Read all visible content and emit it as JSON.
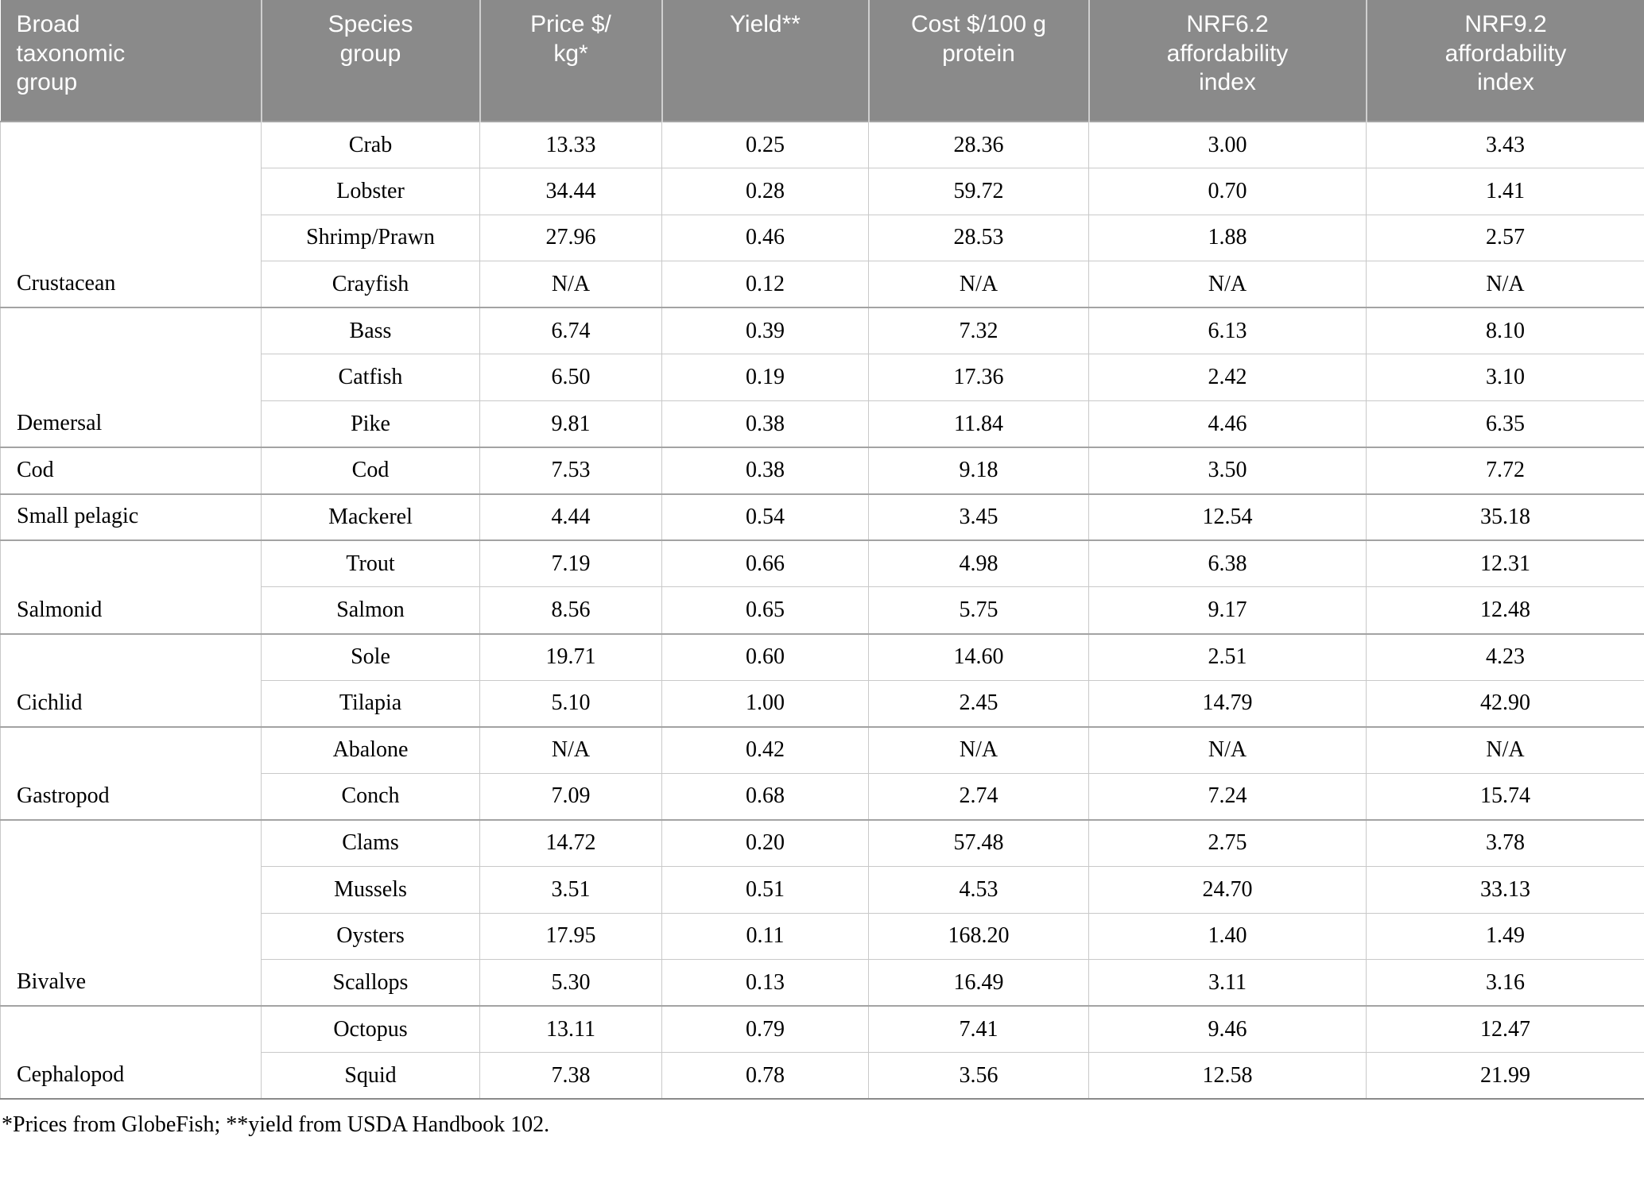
{
  "table": {
    "columns": [
      "Broad\ntaxonomic\ngroup",
      "Species\ngroup",
      "Price $/\nkg*",
      "Yield**",
      "Cost $/100 g\nprotein",
      "NRF6.2\naffordability\nindex",
      "NRF9.2\naffordability\nindex"
    ],
    "groups": [
      {
        "name": "Crustacean",
        "rows": [
          {
            "species": "Crab",
            "price": "13.33",
            "yield": "0.25",
            "cost": "28.36",
            "nrf62": "3.00",
            "nrf92": "3.43"
          },
          {
            "species": "Lobster",
            "price": "34.44",
            "yield": "0.28",
            "cost": "59.72",
            "nrf62": "0.70",
            "nrf92": "1.41"
          },
          {
            "species": "Shrimp/Prawn",
            "price": "27.96",
            "yield": "0.46",
            "cost": "28.53",
            "nrf62": "1.88",
            "nrf92": "2.57"
          },
          {
            "species": "Crayfish",
            "price": "N/A",
            "yield": "0.12",
            "cost": "N/A",
            "nrf62": "N/A",
            "nrf92": "N/A"
          }
        ]
      },
      {
        "name": "Demersal",
        "rows": [
          {
            "species": "Bass",
            "price": "6.74",
            "yield": "0.39",
            "cost": "7.32",
            "nrf62": "6.13",
            "nrf92": "8.10"
          },
          {
            "species": "Catfish",
            "price": "6.50",
            "yield": "0.19",
            "cost": "17.36",
            "nrf62": "2.42",
            "nrf92": "3.10"
          },
          {
            "species": "Pike",
            "price": "9.81",
            "yield": "0.38",
            "cost": "11.84",
            "nrf62": "4.46",
            "nrf92": "6.35"
          }
        ]
      },
      {
        "name": "Cod",
        "rows": [
          {
            "species": "Cod",
            "price": "7.53",
            "yield": "0.38",
            "cost": "9.18",
            "nrf62": "3.50",
            "nrf92": "7.72"
          }
        ]
      },
      {
        "name": "Small pelagic",
        "rows": [
          {
            "species": "Mackerel",
            "price": "4.44",
            "yield": "0.54",
            "cost": "3.45",
            "nrf62": "12.54",
            "nrf92": "35.18"
          }
        ]
      },
      {
        "name": "Salmonid",
        "rows": [
          {
            "species": "Trout",
            "price": "7.19",
            "yield": "0.66",
            "cost": "4.98",
            "nrf62": "6.38",
            "nrf92": "12.31"
          },
          {
            "species": "Salmon",
            "price": "8.56",
            "yield": "0.65",
            "cost": "5.75",
            "nrf62": "9.17",
            "nrf92": "12.48"
          }
        ]
      },
      {
        "name": "Cichlid",
        "rows": [
          {
            "species": "Sole",
            "price": "19.71",
            "yield": "0.60",
            "cost": "14.60",
            "nrf62": "2.51",
            "nrf92": "4.23"
          },
          {
            "species": "Tilapia",
            "price": "5.10",
            "yield": "1.00",
            "cost": "2.45",
            "nrf62": "14.79",
            "nrf92": "42.90"
          }
        ]
      },
      {
        "name": "Gastropod",
        "rows": [
          {
            "species": "Abalone",
            "price": "N/A",
            "yield": "0.42",
            "cost": "N/A",
            "nrf62": "N/A",
            "nrf92": "N/A"
          },
          {
            "species": "Conch",
            "price": "7.09",
            "yield": "0.68",
            "cost": "2.74",
            "nrf62": "7.24",
            "nrf92": "15.74"
          }
        ]
      },
      {
        "name": "Bivalve",
        "rows": [
          {
            "species": "Clams",
            "price": "14.72",
            "yield": "0.20",
            "cost": "57.48",
            "nrf62": "2.75",
            "nrf92": "3.78"
          },
          {
            "species": "Mussels",
            "price": "3.51",
            "yield": "0.51",
            "cost": "4.53",
            "nrf62": "24.70",
            "nrf92": "33.13"
          },
          {
            "species": "Oysters",
            "price": "17.95",
            "yield": "0.11",
            "cost": "168.20",
            "nrf62": "1.40",
            "nrf92": "1.49"
          },
          {
            "species": "Scallops",
            "price": "5.30",
            "yield": "0.13",
            "cost": "16.49",
            "nrf62": "3.11",
            "nrf92": "3.16"
          }
        ]
      },
      {
        "name": "Cephalopod",
        "rows": [
          {
            "species": "Octopus",
            "price": "13.11",
            "yield": "0.79",
            "cost": "7.41",
            "nrf62": "9.46",
            "nrf92": "12.47"
          },
          {
            "species": "Squid",
            "price": "7.38",
            "yield": "0.78",
            "cost": "3.56",
            "nrf62": "12.58",
            "nrf92": "21.99"
          }
        ]
      }
    ],
    "footnote": "*Prices from GlobeFish; **yield from USDA Handbook 102."
  },
  "colors": {
    "header_bg": "#8a8a8a",
    "header_text": "#ffffff",
    "body_text": "#000000",
    "grid_line": "#c9c9c9",
    "group_divider": "#a3a3a3"
  }
}
